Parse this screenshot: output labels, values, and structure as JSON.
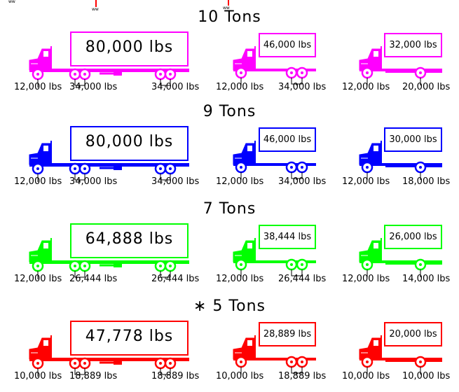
{
  "header_fragment_marks": "ww",
  "rows": [
    {
      "heading": "10 Tons",
      "color": "#ff00ff",
      "semi": {
        "weight": "80,000 lbs",
        "steer": "12,000 lbs",
        "drive": "34,000 lbs",
        "trailer": "34,000 lbs"
      },
      "tandem": {
        "weight": "46,000 lbs",
        "steer": "12,000 lbs",
        "rear": "34,000 lbs"
      },
      "single": {
        "weight": "32,000 lbs",
        "steer": "12,000 lbs",
        "rear": "20,000 lbs"
      }
    },
    {
      "heading": "9 Tons",
      "color": "#0000ff",
      "semi": {
        "weight": "80,000 lbs",
        "steer": "12,000 lbs",
        "drive": "34,000 lbs",
        "trailer": "34,000 lbs"
      },
      "tandem": {
        "weight": "46,000 lbs",
        "steer": "12,000 lbs",
        "rear": "34,000 lbs"
      },
      "single": {
        "weight": "30,000 lbs",
        "steer": "12,000 lbs",
        "rear": "18,000 lbs"
      }
    },
    {
      "heading": "7 Tons",
      "color": "#00ff00",
      "semi": {
        "weight": "64,888 lbs",
        "steer": "12,000 lbs",
        "drive": "26,444 lbs",
        "trailer": "26,444 lbs"
      },
      "tandem": {
        "weight": "38,444 lbs",
        "steer": "12,000 lbs",
        "rear": "26,444 lbs"
      },
      "single": {
        "weight": "26,000 lbs",
        "steer": "12,000 lbs",
        "rear": "14,000 lbs"
      }
    },
    {
      "heading": "∗ 5 Tons",
      "color": "#ff0000",
      "semi": {
        "weight": "47,778 lbs",
        "steer": "10,000 lbs",
        "drive": "18,889 lbs",
        "trailer": "18,889 lbs"
      },
      "tandem": {
        "weight": "28,889 lbs",
        "steer": "10,000 lbs",
        "rear": "18,889 lbs"
      },
      "single": {
        "weight": "20,000 lbs",
        "steer": "10,000 lbs",
        "rear": "10,000 lbs"
      }
    }
  ]
}
